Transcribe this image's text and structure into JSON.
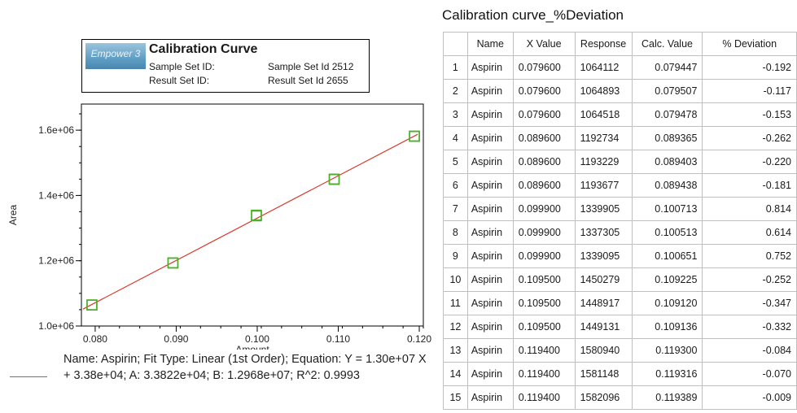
{
  "info_box": {
    "logo_text": "Empower 3",
    "title": "Calibration Curve",
    "sample_set_label": "Sample Set ID:",
    "sample_set_value": "Sample Set Id 2512",
    "result_set_label": "Result Set ID:",
    "result_set_value": "Result Set Id 2655"
  },
  "fit_legend": {
    "text": "Name: Aspirin;   Fit Type: Linear (1st Order); Equation: Y = 1.30e+07 X + 3.38e+04;   A: 3.3822e+04;   B: 1.2968e+07;   R^2: 0.9993"
  },
  "colors": {
    "fit_line": "#d9382a",
    "marker": "#4caf2a",
    "legend_line": "#3a9a3a"
  },
  "chart_data": {
    "type": "scatter",
    "xlabel": "Amount",
    "ylabel": "Area",
    "xlim": [
      0.0783,
      0.1205
    ],
    "ylim": [
      1000000,
      1680000
    ],
    "x_ticks": [
      0.08,
      0.09,
      0.1,
      0.11,
      0.12
    ],
    "x_tick_labels": [
      "0.080",
      "0.090",
      "0.100",
      "0.110",
      "0.120"
    ],
    "y_ticks": [
      1000000,
      1200000,
      1400000,
      1600000
    ],
    "y_tick_labels": [
      "1.0e+06",
      "1.2e+06",
      "1.4e+06",
      "1.6e+06"
    ],
    "fit": {
      "slope": 12968000,
      "intercept": 33822
    },
    "points": [
      {
        "x": 0.0796,
        "y": 1064112
      },
      {
        "x": 0.0796,
        "y": 1064893
      },
      {
        "x": 0.0796,
        "y": 1064518
      },
      {
        "x": 0.0896,
        "y": 1192734
      },
      {
        "x": 0.0896,
        "y": 1193229
      },
      {
        "x": 0.0896,
        "y": 1193677
      },
      {
        "x": 0.0999,
        "y": 1339905
      },
      {
        "x": 0.0999,
        "y": 1337305
      },
      {
        "x": 0.0999,
        "y": 1339095
      },
      {
        "x": 0.1095,
        "y": 1450279
      },
      {
        "x": 0.1095,
        "y": 1448917
      },
      {
        "x": 0.1095,
        "y": 1449131
      },
      {
        "x": 0.1194,
        "y": 1580940
      },
      {
        "x": 0.1194,
        "y": 1581148
      },
      {
        "x": 0.1194,
        "y": 1582096
      }
    ],
    "grid": false
  },
  "table": {
    "title": "Calibration curve_%Deviation",
    "columns": [
      "",
      "Name",
      "X Value",
      "Response",
      "Calc. Value",
      "% Deviation"
    ],
    "rows": [
      [
        "1",
        "Aspirin",
        "0.079600",
        "1064112",
        "0.079447",
        "-0.192"
      ],
      [
        "2",
        "Aspirin",
        "0.079600",
        "1064893",
        "0.079507",
        "-0.117"
      ],
      [
        "3",
        "Aspirin",
        "0.079600",
        "1064518",
        "0.079478",
        "-0.153"
      ],
      [
        "4",
        "Aspirin",
        "0.089600",
        "1192734",
        "0.089365",
        "-0.262"
      ],
      [
        "5",
        "Aspirin",
        "0.089600",
        "1193229",
        "0.089403",
        "-0.220"
      ],
      [
        "6",
        "Aspirin",
        "0.089600",
        "1193677",
        "0.089438",
        "-0.181"
      ],
      [
        "7",
        "Aspirin",
        "0.099900",
        "1339905",
        "0.100713",
        "0.814"
      ],
      [
        "8",
        "Aspirin",
        "0.099900",
        "1337305",
        "0.100513",
        "0.614"
      ],
      [
        "9",
        "Aspirin",
        "0.099900",
        "1339095",
        "0.100651",
        "0.752"
      ],
      [
        "10",
        "Aspirin",
        "0.109500",
        "1450279",
        "0.109225",
        "-0.252"
      ],
      [
        "11",
        "Aspirin",
        "0.109500",
        "1448917",
        "0.109120",
        "-0.347"
      ],
      [
        "12",
        "Aspirin",
        "0.109500",
        "1449131",
        "0.109136",
        "-0.332"
      ],
      [
        "13",
        "Aspirin",
        "0.119400",
        "1580940",
        "0.119300",
        "-0.084"
      ],
      [
        "14",
        "Aspirin",
        "0.119400",
        "1581148",
        "0.119316",
        "-0.070"
      ],
      [
        "15",
        "Aspirin",
        "0.119400",
        "1582096",
        "0.119389",
        "-0.009"
      ]
    ]
  }
}
